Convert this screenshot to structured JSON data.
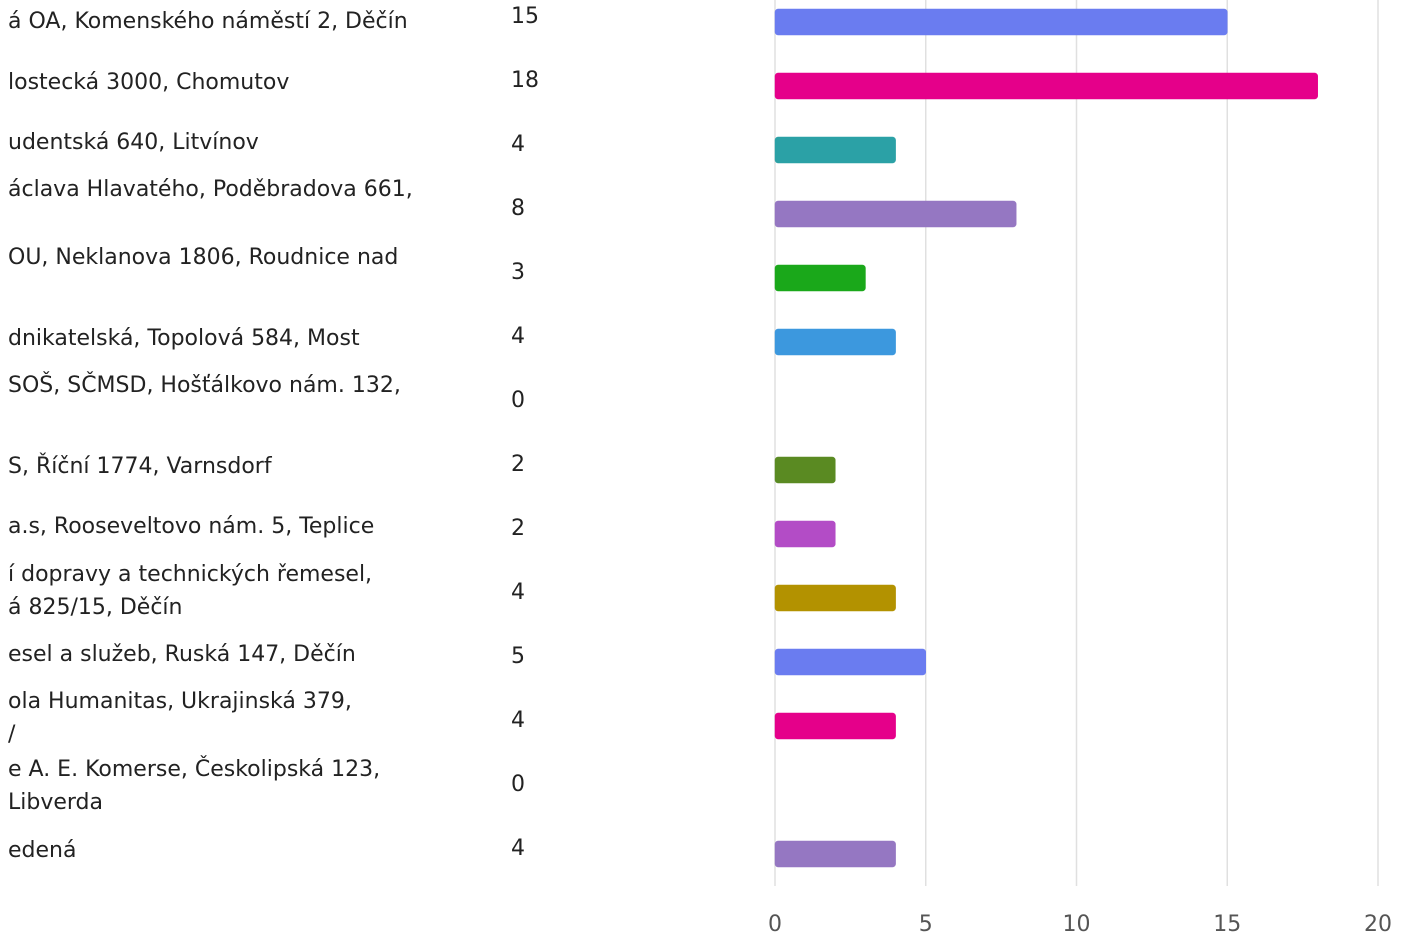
{
  "chart_data": {
    "type": "bar",
    "orientation": "horizontal",
    "categories": [
      [
        "á OA, Komenského náměstí 2, Děčín"
      ],
      [
        "lostecká 3000, Chomutov"
      ],
      [
        "udentská 640, Litvínov"
      ],
      [
        "áclava Hlavatého, Poděbradova 661,"
      ],
      [
        "OU, Neklanova 1806, Roudnice nad"
      ],
      [
        "dnikatelská, Topolová 584, Most"
      ],
      [
        "SOŠ, SČMSD, Hošťálkovo nám. 132,"
      ],
      [
        "S, Říční 1774, Varnsdorf"
      ],
      [
        "a.s, Rooseveltovo nám. 5, Teplice"
      ],
      [
        "í dopravy a technických řemesel,",
        "á 825/15, Děčín"
      ],
      [
        "esel a služeb, Ruská 147, Děčín"
      ],
      [
        "ola Humanitas, Ukrajinská 379,",
        "/"
      ],
      [
        "e A. E. Komerse, Českolipská 123,",
        "Libverda"
      ],
      [
        "edená"
      ]
    ],
    "values": [
      15,
      18,
      4,
      8,
      3,
      4,
      0,
      2,
      2,
      4,
      5,
      4,
      0,
      4
    ],
    "colors": [
      "#6a7cf0",
      "#e5008a",
      "#2ba1a6",
      "#9577c2",
      "#1aa81a",
      "#3c98de",
      "#e8a08c",
      "#5a8a22",
      "#b34cc6",
      "#b39200",
      "#6a7cf0",
      "#e5008a",
      "#2ba1a6",
      "#9577c2"
    ],
    "xlim": [
      0,
      20
    ],
    "xticks": [
      0,
      5,
      10,
      15,
      20
    ],
    "grid": true
  }
}
